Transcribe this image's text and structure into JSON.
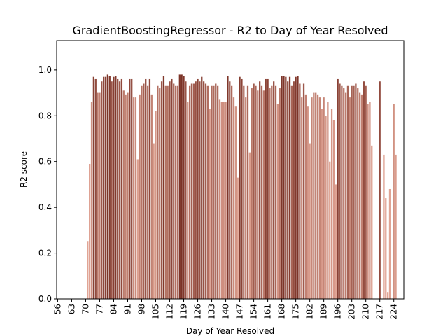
{
  "chart_data": {
    "type": "bar",
    "title": "GradientBoostingRegressor - R2 to Day of Year Resolved",
    "xlabel": "Day of Year Resolved",
    "ylabel": "R2 score",
    "x": [
      71,
      72,
      73,
      74,
      75,
      76,
      77,
      78,
      79,
      80,
      81,
      82,
      83,
      84,
      85,
      86,
      87,
      88,
      89,
      90,
      91,
      92,
      93,
      94,
      95,
      96,
      97,
      98,
      99,
      100,
      101,
      102,
      103,
      104,
      105,
      106,
      107,
      108,
      109,
      110,
      111,
      112,
      113,
      114,
      115,
      116,
      117,
      118,
      119,
      120,
      121,
      122,
      123,
      124,
      125,
      126,
      127,
      128,
      129,
      130,
      131,
      132,
      133,
      134,
      135,
      136,
      137,
      138,
      139,
      140,
      141,
      142,
      143,
      144,
      145,
      146,
      147,
      148,
      149,
      150,
      151,
      152,
      153,
      154,
      155,
      156,
      157,
      158,
      159,
      160,
      161,
      162,
      163,
      164,
      165,
      166,
      167,
      168,
      169,
      170,
      171,
      172,
      173,
      174,
      175,
      176,
      177,
      178,
      179,
      180,
      181,
      182,
      183,
      184,
      185,
      186,
      187,
      188,
      189,
      190,
      191,
      192,
      193,
      194,
      195,
      196,
      197,
      198,
      199,
      200,
      201,
      202,
      203,
      204,
      205,
      206,
      207,
      208,
      209,
      210,
      211,
      212,
      213,
      217,
      219,
      220,
      221,
      222,
      224,
      225
    ],
    "values": [
      0.25,
      0.59,
      0.86,
      0.97,
      0.96,
      0.9,
      0.9,
      0.95,
      0.97,
      0.97,
      0.98,
      0.975,
      0.95,
      0.97,
      0.975,
      0.96,
      0.95,
      0.96,
      0.91,
      0.89,
      0.9,
      0.96,
      0.96,
      0.88,
      0.88,
      0.61,
      0.89,
      0.93,
      0.94,
      0.96,
      0.93,
      0.96,
      0.89,
      0.68,
      0.82,
      0.93,
      0.92,
      0.95,
      0.975,
      0.93,
      0.93,
      0.95,
      0.96,
      0.94,
      0.93,
      0.93,
      0.98,
      0.98,
      0.975,
      0.95,
      0.86,
      0.93,
      0.94,
      0.94,
      0.95,
      0.96,
      0.95,
      0.97,
      0.95,
      0.94,
      0.93,
      0.83,
      0.93,
      0.93,
      0.94,
      0.93,
      0.87,
      0.86,
      0.86,
      0.86,
      0.975,
      0.95,
      0.93,
      0.88,
      0.84,
      0.53,
      0.97,
      0.96,
      0.93,
      0.88,
      0.93,
      0.64,
      0.92,
      0.94,
      0.93,
      0.91,
      0.95,
      0.93,
      0.91,
      0.96,
      0.96,
      0.92,
      0.93,
      0.95,
      0.93,
      0.85,
      0.92,
      0.975,
      0.975,
      0.97,
      0.95,
      0.97,
      0.93,
      0.95,
      0.97,
      0.975,
      0.94,
      0.88,
      0.94,
      0.89,
      0.84,
      0.68,
      0.88,
      0.9,
      0.9,
      0.89,
      0.88,
      0.83,
      0.88,
      0.8,
      0.86,
      0.6,
      0.83,
      0.78,
      0.5,
      0.96,
      0.94,
      0.93,
      0.92,
      0.9,
      0.93,
      0.88,
      0.93,
      0.93,
      0.94,
      0.92,
      0.9,
      0.89,
      0.95,
      0.93,
      0.85,
      0.86,
      0.67,
      0.95,
      0.63,
      0.44,
      0.03,
      0.48,
      0.85,
      0.63
    ],
    "palette": [
      "#e2a595",
      "#7b3226"
    ],
    "xlim": [
      55.5,
      229
    ],
    "xticks": [
      56,
      63,
      70,
      77,
      84,
      91,
      98,
      105,
      112,
      119,
      126,
      133,
      140,
      147,
      154,
      161,
      168,
      175,
      182,
      189,
      196,
      203,
      210,
      217,
      224
    ],
    "ylim": [
      0,
      1.128
    ],
    "yticks": [
      {
        "value": 0,
        "label": "0.0"
      },
      0.2,
      0.4,
      0.6,
      0.8,
      {
        "value": 1,
        "label": "1.0"
      }
    ]
  }
}
